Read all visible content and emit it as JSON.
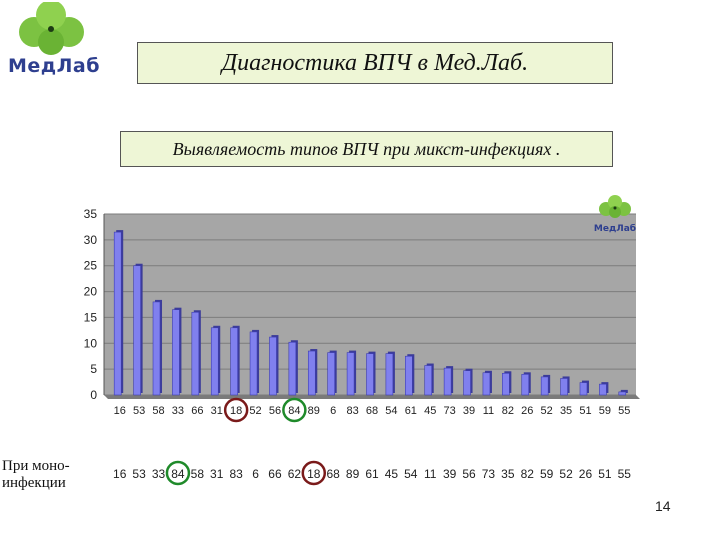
{
  "logo": {
    "text": "МедЛаб",
    "small_text": "МедЛаб"
  },
  "title": "Диагностика ВПЧ в Мед.Лаб.",
  "subtitle": "Выявляемость типов ВПЧ при микст-инфекциях .",
  "chart_data": {
    "type": "bar",
    "title": "",
    "xlabel": "",
    "ylabel": "",
    "ylim": [
      0,
      35
    ],
    "y_ticks": [
      "0",
      "5",
      "10",
      "15",
      "20",
      "25",
      "30",
      "35"
    ],
    "grid": true,
    "categories": [
      "16",
      "53",
      "58",
      "33",
      "66",
      "31",
      "18",
      "52",
      "56",
      "84",
      "89",
      "6",
      "83",
      "68",
      "54",
      "61",
      "45",
      "73",
      "39",
      "11",
      "82",
      "26",
      "52",
      "35",
      "51",
      "59",
      "55"
    ],
    "values": [
      31.5,
      25,
      18,
      16.5,
      16,
      13,
      13,
      12.2,
      11.2,
      10.2,
      8.5,
      8.2,
      8.2,
      8,
      8,
      7.5,
      5.7,
      5.2,
      4.7,
      4.3,
      4.2,
      4,
      3.5,
      3.2,
      2.4,
      2.1,
      0.6
    ],
    "bar_color": "#8080ee",
    "plot_background": "#a6a6a6",
    "highlight_colors": {
      "18": "#7a1a1a",
      "84": "#1f8a2a"
    }
  },
  "mono_row": {
    "label": "При моно-инфекции",
    "values": [
      "16",
      "53",
      "33",
      "84",
      "58",
      "31",
      "83",
      "6",
      "66",
      "62",
      "18",
      "68",
      "89",
      "61",
      "45",
      "54",
      "11",
      "39",
      "56",
      "73",
      "35",
      "82",
      "59",
      "52",
      "26",
      "51",
      "55"
    ]
  },
  "page_number": "14"
}
